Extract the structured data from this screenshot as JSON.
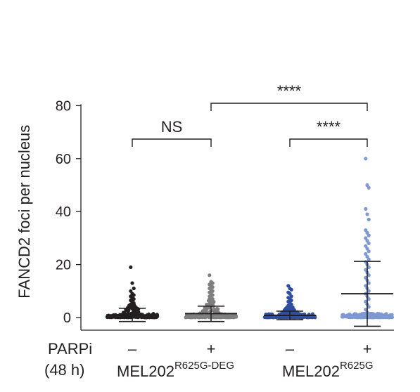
{
  "chart_data": {
    "type": "scatter",
    "ylabel": "FANCD2 foci per nucleus",
    "ylim": [
      -5,
      85
    ],
    "y_ticks": [
      0,
      20,
      40,
      60,
      80
    ],
    "row_labels": {
      "treatment": "PARPi",
      "duration": "(48 h)"
    },
    "categories": [
      {
        "treatment": "–",
        "color": "#231f20",
        "mean": 1.0,
        "sd_low": -1.5,
        "sd_high": 3.5,
        "max": 19,
        "spread_level": 5,
        "outliers": [
          19,
          13,
          11,
          10,
          9,
          8.5,
          8,
          7.5,
          7,
          6.5,
          6,
          5.5,
          5
        ]
      },
      {
        "treatment": "+",
        "color": "#7f7f7f",
        "mean": 1.5,
        "sd_low": -1.5,
        "sd_high": 4.3,
        "max": 16,
        "spread_level": 7,
        "outliers": [
          16,
          13.5,
          13,
          12.5,
          12,
          11.5,
          11,
          10.5,
          10,
          9.5,
          9,
          8.5,
          8,
          7.5,
          7
        ]
      },
      {
        "treatment": "–",
        "color": "#2e4fa0",
        "mean": 0.8,
        "sd_low": -0.8,
        "sd_high": 2.4,
        "max": 12,
        "spread_level": 4,
        "outliers": [
          12,
          11,
          10.5,
          9.5,
          9,
          8,
          7.5,
          7,
          6.5,
          6,
          5.5,
          5,
          4.5,
          4
        ]
      },
      {
        "treatment": "+",
        "color": "#7e98d1",
        "mean": 9.0,
        "sd_low": -3.3,
        "sd_high": 21.2,
        "max": 60,
        "spread_level": 1.5,
        "outliers": [
          60,
          50,
          49,
          41,
          39,
          37,
          33,
          32,
          31,
          30,
          29,
          28,
          27,
          26,
          25,
          24,
          23,
          22,
          21,
          20,
          19,
          18,
          17,
          16,
          15,
          14,
          13,
          12,
          11,
          10,
          9,
          8,
          7,
          6,
          5,
          4,
          3,
          2
        ]
      }
    ],
    "groups": [
      {
        "name": "MEL202",
        "superscript": "R625G-DEG"
      },
      {
        "name": "MEL202",
        "superscript": "R625G"
      }
    ],
    "comparisons": [
      {
        "from": 0,
        "to": 1,
        "label": "NS"
      },
      {
        "from": 2,
        "to": 3,
        "label": "****"
      },
      {
        "from": 1,
        "to": 3,
        "label": "****"
      }
    ]
  }
}
